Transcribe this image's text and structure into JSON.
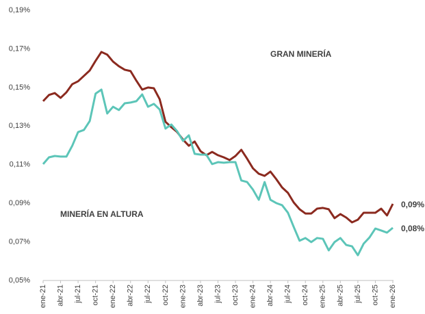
{
  "chart_data": {
    "type": "line",
    "categories": [
      "ene-21",
      null,
      null,
      "abr-21",
      null,
      null,
      "jul-21",
      null,
      null,
      "oct-21",
      null,
      null,
      "ene-22",
      null,
      null,
      "abr-22",
      null,
      null,
      "jul-22",
      null,
      null,
      "oct-22",
      null,
      null,
      "ene-23",
      null,
      null,
      "abr-23",
      null,
      null,
      "jul-23",
      null,
      null,
      "oct-23",
      null,
      null,
      "ene-24",
      null,
      null,
      "abr-24",
      null,
      null,
      "jul-24",
      null,
      null,
      "oct-24",
      null,
      null,
      "ene-25",
      null,
      null,
      "abr-25",
      null,
      null,
      "jul-25",
      null,
      null,
      "oct-25",
      null,
      null,
      "ene-26"
    ],
    "series": [
      {
        "name": "GRAN MINERÍA",
        "color": "#8b2a1f",
        "values": [
          0.1429,
          0.1461,
          0.1471,
          0.1446,
          0.1475,
          0.1517,
          0.1532,
          0.156,
          0.1588,
          0.1638,
          0.1684,
          0.167,
          0.1634,
          0.161,
          0.1592,
          0.1585,
          0.1535,
          0.1489,
          0.15,
          0.1496,
          0.1439,
          0.1322,
          0.1294,
          0.1269,
          0.123,
          0.1198,
          0.122,
          0.117,
          0.1149,
          0.1166,
          0.1149,
          0.1138,
          0.1124,
          0.1145,
          0.1177,
          0.1131,
          0.1081,
          0.1053,
          0.1042,
          0.1064,
          0.1025,
          0.0982,
          0.0954,
          0.0904,
          0.0869,
          0.0847,
          0.0847,
          0.0872,
          0.0876,
          0.0869,
          0.0823,
          0.0844,
          0.0826,
          0.0801,
          0.0815,
          0.0851,
          0.0851,
          0.0851,
          0.0872,
          0.0837,
          0.0897
        ],
        "value_labels": [
          null,
          null,
          null,
          null,
          null,
          null,
          null,
          null,
          null,
          null,
          null,
          null,
          null,
          null,
          null,
          null,
          null,
          null,
          null,
          null,
          null,
          null,
          null,
          null,
          null,
          null,
          null,
          null,
          null,
          null,
          null,
          null,
          null,
          null,
          null,
          null,
          null,
          null,
          null,
          null,
          null,
          null,
          null,
          null,
          null,
          null,
          null,
          null,
          null,
          null,
          null,
          null,
          null,
          null,
          null,
          null,
          null,
          null,
          null,
          null,
          "0,09%"
        ]
      },
      {
        "name": "MINERÍA EN ALTURA",
        "color": "#5cc5b8",
        "values": [
          0.1103,
          0.1138,
          0.1145,
          0.1142,
          0.1142,
          0.1198,
          0.1269,
          0.128,
          0.1326,
          0.1468,
          0.1489,
          0.1365,
          0.14,
          0.1383,
          0.1418,
          0.1422,
          0.1429,
          0.1464,
          0.14,
          0.1415,
          0.1386,
          0.1287,
          0.1308,
          0.1273,
          0.1223,
          0.1252,
          0.1156,
          0.1152,
          0.1152,
          0.1103,
          0.1113,
          0.111,
          0.1113,
          0.1113,
          0.1018,
          0.101,
          0.0971,
          0.0918,
          0.101,
          0.0918,
          0.0901,
          0.089,
          0.0851,
          0.0777,
          0.0706,
          0.072,
          0.0699,
          0.072,
          0.0716,
          0.0656,
          0.0699,
          0.072,
          0.0684,
          0.0677,
          0.0631,
          0.0691,
          0.0723,
          0.0769,
          0.0759,
          0.0748,
          0.0773
        ],
        "value_labels": [
          null,
          null,
          null,
          null,
          null,
          null,
          null,
          null,
          null,
          null,
          null,
          null,
          null,
          null,
          null,
          null,
          null,
          null,
          null,
          null,
          null,
          null,
          null,
          null,
          null,
          null,
          null,
          null,
          null,
          null,
          null,
          null,
          null,
          null,
          null,
          null,
          null,
          null,
          null,
          null,
          null,
          null,
          null,
          null,
          null,
          null,
          null,
          null,
          null,
          null,
          null,
          null,
          null,
          null,
          null,
          null,
          null,
          null,
          null,
          null,
          "0,08%"
        ]
      }
    ],
    "ylim": [
      0.05,
      0.19
    ],
    "yticks": [
      {
        "value": 0.05,
        "label": "0,05%"
      },
      {
        "value": 0.07,
        "label": "0,07%"
      },
      {
        "value": 0.09,
        "label": "0,09%"
      },
      {
        "value": 0.11,
        "label": "0,11%"
      },
      {
        "value": 0.13,
        "label": "0,13%"
      },
      {
        "value": 0.15,
        "label": "0,15%"
      },
      {
        "value": 0.17,
        "label": "0,17%"
      },
      {
        "value": 0.19,
        "label": "0,19%"
      }
    ],
    "grid": false
  }
}
